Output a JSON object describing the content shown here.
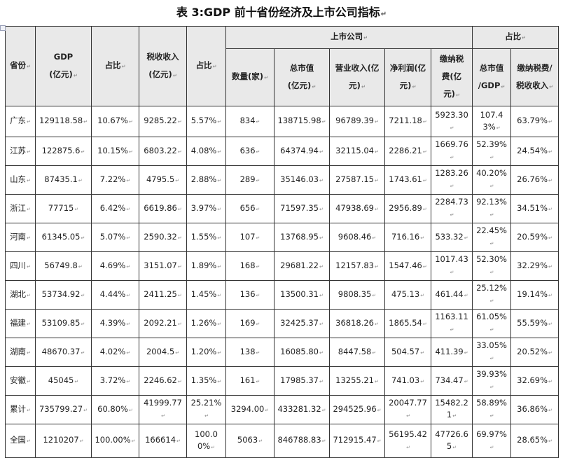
{
  "title": "表 3:GDP 前十省份经济及上市公司指标",
  "marks": {
    "cell": "↵",
    "line": "↵"
  },
  "table": {
    "group_headers": [
      {
        "label": "上市公司"
      },
      {
        "label": "占比"
      }
    ],
    "columns": [
      "省份",
      "GDP\n(亿元)",
      "占比",
      "税收收入\n(亿元)",
      "占比",
      "数量(家)",
      "总市值\n(亿元)",
      "营业收入(亿\n元)",
      "净利润(亿\n元)",
      "缴纳税\n费(亿\n元)",
      "总市值\n/GDP",
      "缴纳税费/\n税收收入"
    ],
    "rows": [
      [
        "广东",
        "129118.58",
        "10.67%",
        "9285.22",
        "5.57%",
        "834",
        "138715.98",
        "96789.39",
        "7211.18",
        "5923.30",
        "107.43%",
        "63.79%"
      ],
      [
        "江苏",
        "122875.6",
        "10.15%",
        "6803.22",
        "4.08%",
        "636",
        "64374.94",
        "32115.04",
        "2286.21",
        "1669.76",
        "52.39%",
        "24.54%"
      ],
      [
        "山东",
        "87435.1",
        "7.22%",
        "4795.5",
        "2.88%",
        "289",
        "35146.03",
        "27587.15",
        "1743.61",
        "1283.26",
        "40.20%",
        "26.76%"
      ],
      [
        "浙江",
        "77715",
        "6.42%",
        "6619.86",
        "3.97%",
        "656",
        "71597.35",
        "47938.69",
        "2956.89",
        "2284.73",
        "92.13%",
        "34.51%"
      ],
      [
        "河南",
        "61345.05",
        "5.07%",
        "2590.32",
        "1.55%",
        "107",
        "13768.95",
        "9608.46",
        "716.16",
        "533.32",
        "22.45%",
        "20.59%"
      ],
      [
        "四川",
        "56749.8",
        "4.69%",
        "3151.07",
        "1.89%",
        "168",
        "29681.22",
        "12157.83",
        "1547.46",
        "1017.43",
        "52.30%",
        "32.29%"
      ],
      [
        "湖北",
        "53734.92",
        "4.44%",
        "2411.25",
        "1.45%",
        "136",
        "13500.31",
        "9808.35",
        "475.13",
        "461.44",
        "25.12%",
        "19.14%"
      ],
      [
        "福建",
        "53109.85",
        "4.39%",
        "2092.21",
        "1.26%",
        "169",
        "32425.37",
        "36818.26",
        "1865.54",
        "1163.11",
        "61.05%",
        "55.59%"
      ],
      [
        "湖南",
        "48670.37",
        "4.02%",
        "2004.5",
        "1.20%",
        "138",
        "16085.80",
        "8447.58",
        "504.57",
        "411.39",
        "33.05%",
        "20.52%"
      ],
      [
        "安徽",
        "45045",
        "3.72%",
        "2246.62",
        "1.35%",
        "161",
        "17985.37",
        "13255.21",
        "741.03",
        "734.47",
        "39.93%",
        "32.69%"
      ],
      [
        "累计",
        "735799.27",
        "60.80%",
        "41999.77",
        "25.21%",
        "3294.00",
        "433281.32",
        "294525.96",
        "20047.77",
        "15482.21",
        "58.89%",
        "36.86%"
      ],
      [
        "全国",
        "1210207",
        "100.00%",
        "166614",
        "100.00%",
        "5063",
        "846788.83",
        "712915.47",
        "56195.42",
        "47726.65",
        "69.97%",
        "28.65%"
      ]
    ]
  }
}
